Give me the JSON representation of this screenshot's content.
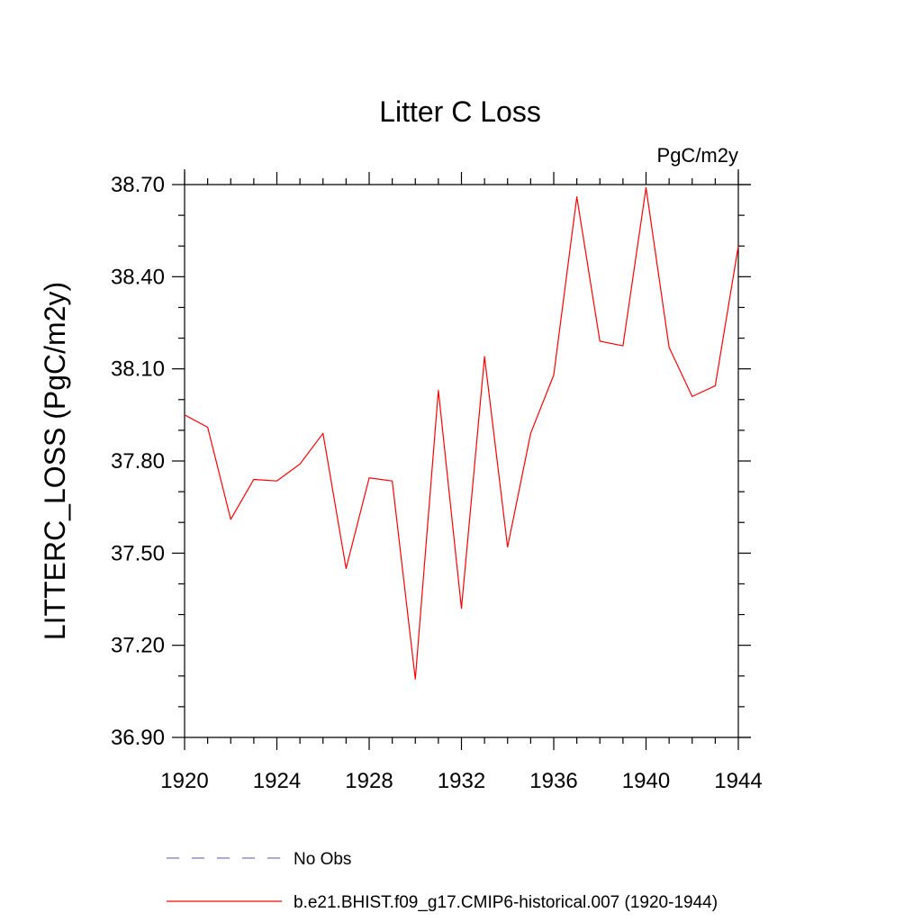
{
  "chart_data": {
    "type": "line",
    "title": "Litter C Loss",
    "units_label": "PgC/m2y",
    "xlabel": "",
    "ylabel": "LITTERC_LOSS  (PgC/m2y)",
    "xlim": [
      1920,
      1944
    ],
    "ylim": [
      36.9,
      38.7
    ],
    "x_ticks": [
      1920,
      1924,
      1928,
      1932,
      1936,
      1940,
      1944
    ],
    "x_tick_labels": [
      "1920",
      "1924",
      "1928",
      "1932",
      "1936",
      "1940",
      "1944"
    ],
    "y_ticks": [
      36.9,
      37.2,
      37.5,
      37.8,
      38.1,
      38.4,
      38.7
    ],
    "y_tick_labels": [
      "36.90",
      "37.20",
      "37.50",
      "37.80",
      "38.10",
      "38.40",
      "38.70"
    ],
    "y_minor_step": 0.1,
    "x_minor_step": 1,
    "grid": false,
    "legend_position": "bottom",
    "series": [
      {
        "name": "b.e21.BHIST.f09_g17.CMIP6-historical.007 (1920-1944)",
        "color": "#ff0000",
        "style": "solid",
        "x": [
          1920,
          1921,
          1922,
          1923,
          1924,
          1925,
          1926,
          1927,
          1928,
          1929,
          1930,
          1931,
          1932,
          1933,
          1934,
          1935,
          1936,
          1937,
          1938,
          1939,
          1940,
          1941,
          1942,
          1943,
          1944
        ],
        "values": [
          37.95,
          37.91,
          37.61,
          37.74,
          37.735,
          37.79,
          37.89,
          37.45,
          37.745,
          37.735,
          37.09,
          38.03,
          37.32,
          38.14,
          37.52,
          37.89,
          38.08,
          38.66,
          38.19,
          38.175,
          38.69,
          38.17,
          38.01,
          38.045,
          38.5
        ]
      }
    ],
    "legend": [
      {
        "label": "No Obs",
        "color": "#7777bb",
        "style": "dashed"
      },
      {
        "label": "b.e21.BHIST.f09_g17.CMIP6-historical.007 (1920-1944)",
        "color": "#ff0000",
        "style": "solid"
      }
    ]
  }
}
